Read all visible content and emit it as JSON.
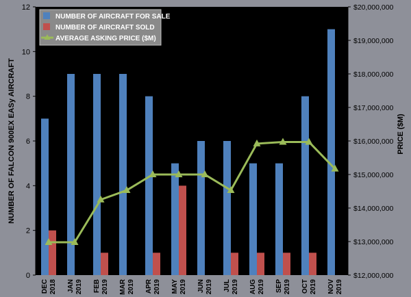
{
  "chart_data": {
    "type": "bar",
    "categories": [
      [
        "DEC",
        "2018"
      ],
      [
        "JAN",
        "2019"
      ],
      [
        "FEB",
        "2019"
      ],
      [
        "MAR",
        "2019"
      ],
      [
        "APR",
        "2019"
      ],
      [
        "MAY",
        "2019"
      ],
      [
        "JUN",
        "2019"
      ],
      [
        "JUL",
        "2019"
      ],
      [
        "AUG",
        "2019"
      ],
      [
        "SEP",
        "2019"
      ],
      [
        "OCT",
        "2019"
      ],
      [
        "NOV",
        "2019"
      ]
    ],
    "series": [
      {
        "name": "NUMBER OF AIRCRAFT FOR SALE",
        "type": "bar",
        "axis": "left",
        "color": "#4f81bd",
        "values": [
          7,
          9,
          9,
          9,
          8,
          5,
          6,
          6,
          5,
          5,
          8,
          11
        ]
      },
      {
        "name": "NUMBER OF AIRCRAFT SOLD",
        "type": "bar",
        "axis": "left",
        "color": "#c0504d",
        "values": [
          2,
          0,
          1,
          0,
          1,
          4,
          0,
          1,
          1,
          1,
          1,
          0
        ]
      },
      {
        "name": "AVERAGE ASKING PRICE ($M)",
        "type": "line",
        "axis": "right",
        "color": "#9bbb59",
        "marker": "triangle",
        "values": [
          12980000,
          12980000,
          14250000,
          14530000,
          15000000,
          15000000,
          15000000,
          14530000,
          15920000,
          15970000,
          15970000,
          15170000
        ]
      }
    ],
    "ylabel": "NUMBER OF FALCON 900EX EASy AIRCRAFT",
    "ylim": [
      0,
      12
    ],
    "yticks": [
      0,
      2,
      4,
      6,
      8,
      10,
      12
    ],
    "y2label": "PRICE ($M)",
    "y2lim": [
      12000000,
      20000000
    ],
    "y2ticks": [
      "$12,000,000",
      "$13,000,000",
      "$14,000,000",
      "$15,000,000",
      "$16,000,000",
      "$17,000,000",
      "$18,000,000",
      "$19,000,000",
      "$20,000,000"
    ],
    "grid": false,
    "legend_position": "top-left",
    "plot_background": "#000000",
    "page_background": "#8e9099"
  }
}
